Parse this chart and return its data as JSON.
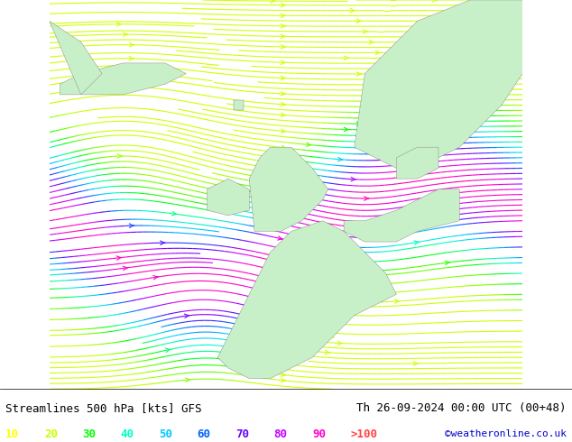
{
  "title_left": "Streamlines 500 hPa [kts] GFS",
  "title_right": "Th 26-09-2024 00:00 UTC (00+48)",
  "copyright": "©weatheronline.co.uk",
  "legend_values": [
    "10",
    "20",
    "30",
    "40",
    "50",
    "60",
    "70",
    "80",
    "90",
    ">100"
  ],
  "legend_colors": [
    "#ffff00",
    "#c8ff00",
    "#00ff00",
    "#00ffc8",
    "#00c8ff",
    "#0064ff",
    "#6400ff",
    "#c800ff",
    "#ff00c8",
    "#ff0000"
  ],
  "speed_colors": {
    "10": "#ffff00",
    "20": "#c8ff00",
    "30": "#00ff00",
    "40": "#00ffc8",
    "50": "#00c8ff",
    "60": "#0064ff",
    "70": "#6400ff",
    "80": "#c800ff",
    "90": "#ff00c8",
    "100": "#ff0000"
  },
  "bg_color": "#e8e8e8",
  "land_color": "#c8f0c8",
  "water_color": "#e8e8e8",
  "fig_width": 6.34,
  "fig_height": 4.9,
  "dpi": 100,
  "xlim": [
    -25,
    20
  ],
  "ylim": [
    35,
    72
  ],
  "streamline_density": 2.5,
  "font_size_title": 9,
  "font_size_legend": 9
}
